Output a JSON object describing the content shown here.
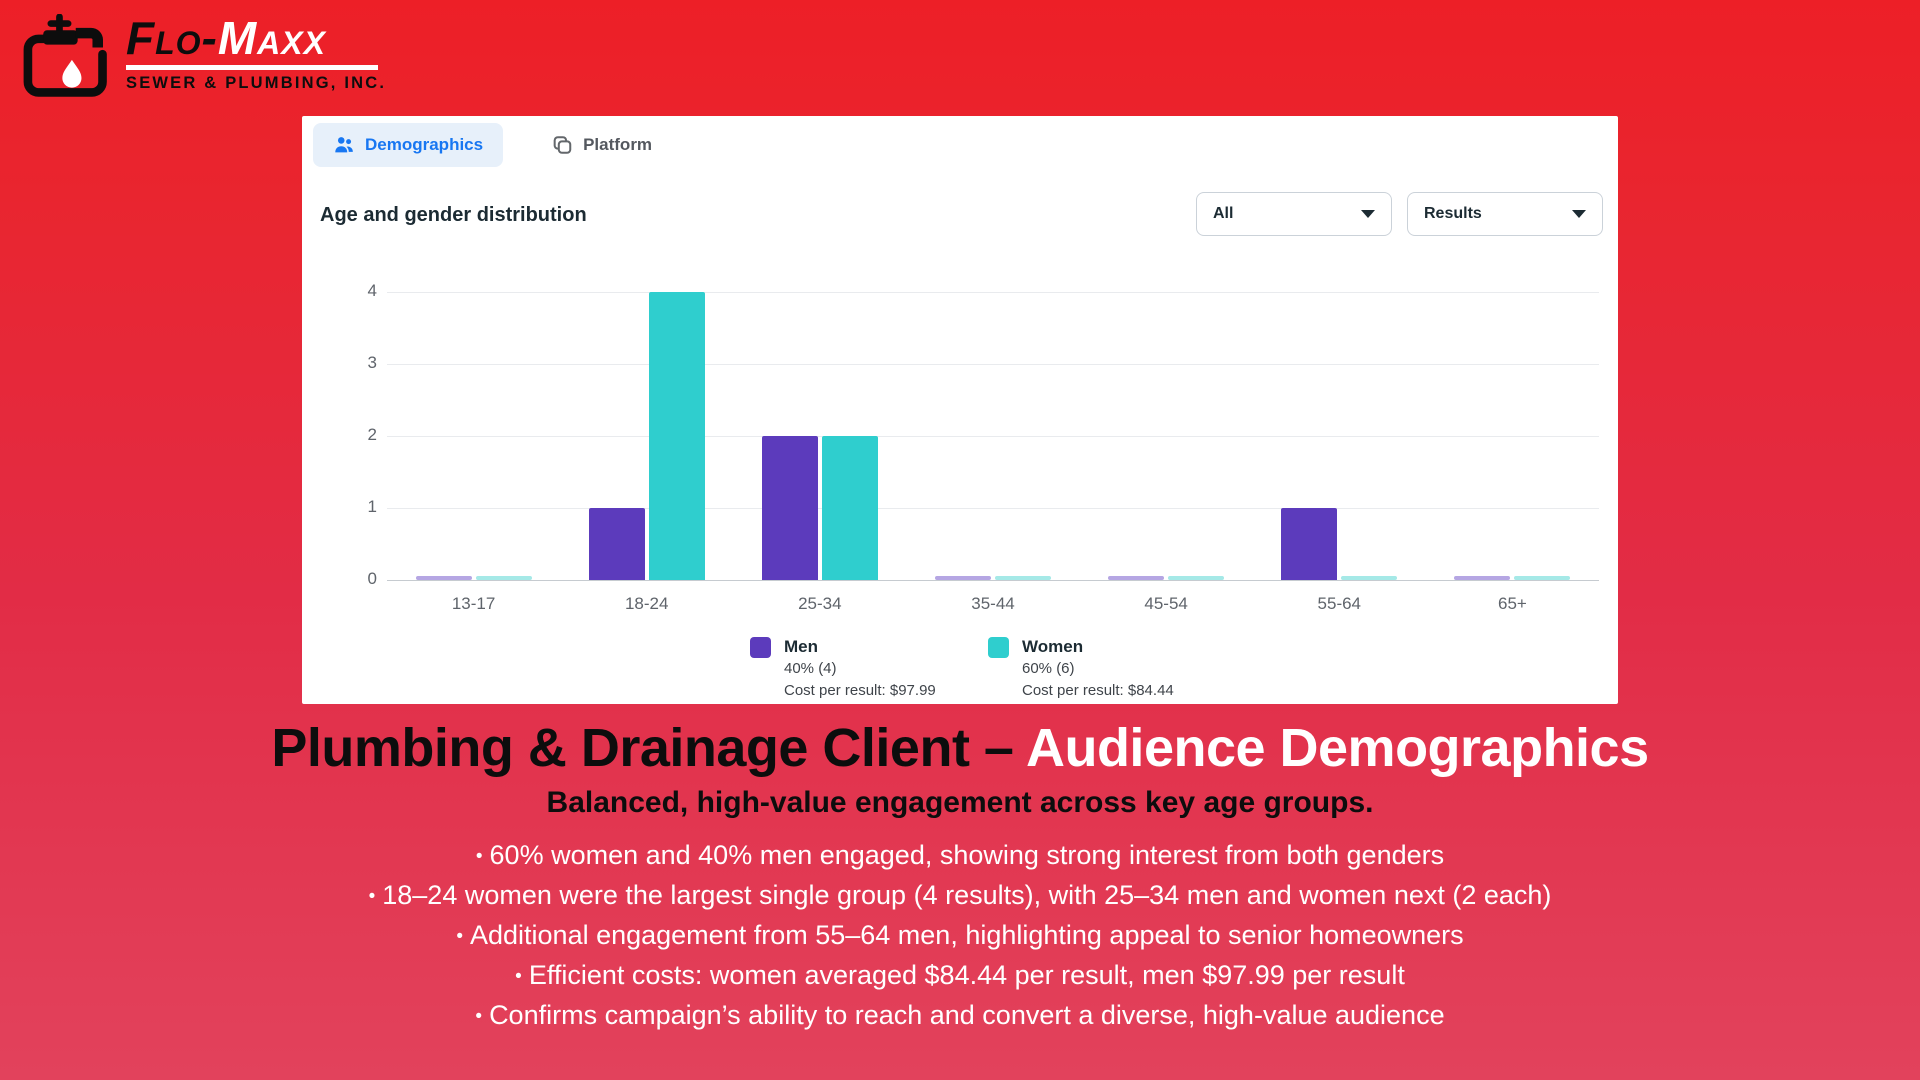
{
  "logo": {
    "brand_black": "Flo-",
    "brand_white": "Maxx",
    "tagline": "SEWER & PLUMBING, INC.",
    "icons": [
      "faucet-icon",
      "water-drop-icon"
    ]
  },
  "panel": {
    "tabs": [
      {
        "label": "Demographics",
        "active": true,
        "icon": "people-icon"
      },
      {
        "label": "Platform",
        "active": false,
        "icon": "overlapping-squares-icon"
      }
    ],
    "title": "Age and gender distribution",
    "filters": [
      {
        "value": "All",
        "icon": "chevron-down-icon"
      },
      {
        "value": "Results",
        "icon": "chevron-down-icon"
      }
    ]
  },
  "chart_data": {
    "type": "bar",
    "title": "Age and gender distribution",
    "categories": [
      "13-17",
      "18-24",
      "25-34",
      "35-44",
      "45-54",
      "55-64",
      "65+"
    ],
    "series": [
      {
        "name": "Men",
        "values": [
          0,
          1,
          2,
          0,
          0,
          1,
          0
        ],
        "color": "#5c3bbc",
        "zero_color": "#b5a6e3",
        "share_label": "40% (4)",
        "cost_label": "Cost per result: $97.99"
      },
      {
        "name": "Women",
        "values": [
          0,
          4,
          2,
          0,
          0,
          0,
          0
        ],
        "color": "#2fcece",
        "zero_color": "#a5e9e7",
        "share_label": "60% (6)",
        "cost_label": "Cost per result: $84.44"
      }
    ],
    "xlabel": "",
    "ylabel": "",
    "ylim": [
      0,
      4
    ],
    "yticks": [
      0,
      1,
      2,
      3,
      4
    ],
    "grid": true,
    "legend_position": "bottom"
  },
  "caption": {
    "title_black": "Plumbing & Drainage Client – ",
    "title_white": "Audience Demographics",
    "subtitle": "Balanced, high-value engagement across key age groups.",
    "bullets": [
      "60% women and 40% men engaged, showing strong interest from both genders",
      "18–24 women were the largest single group (4 results), with 25–34 men and women next (2 each)",
      "Additional engagement from 55–64 men, highlighting appeal to senior homeowners",
      "Efficient costs: women averaged $84.44 per result, men $97.99 per result",
      "Confirms campaign’s ability to reach and convert a diverse, high-value audience"
    ]
  },
  "colors": {
    "background_top": "#ed1f27",
    "background_bottom": "#e2425c",
    "tab_active": "#1877f2",
    "tab_active_bg": "#e7f0fa",
    "men_bar": "#5c3bbc",
    "women_bar": "#2fcece"
  }
}
